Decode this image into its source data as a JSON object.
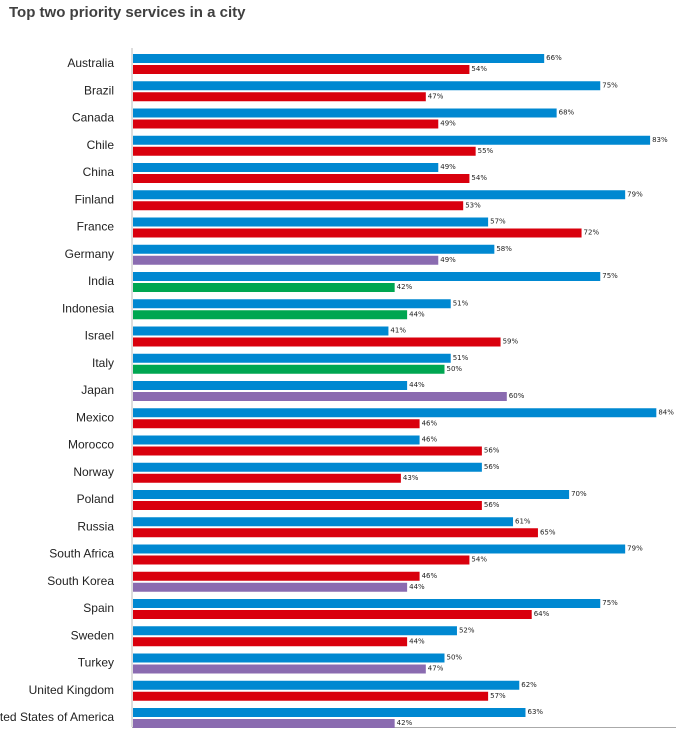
{
  "chart_data": {
    "type": "bar",
    "orientation": "horizontal",
    "title": "Top two priority services in a city",
    "xlim": [
      0,
      87
    ],
    "grid": false,
    "legend": "none",
    "value_suffix": "%",
    "colors": {
      "blue": "#0088d1",
      "red": "#d9000d",
      "purple": "#8a6bb0",
      "green": "#00a651"
    },
    "categories": [
      {
        "label": "Australia",
        "bars": [
          {
            "value": 66,
            "color": "blue"
          },
          {
            "value": 54,
            "color": "red"
          }
        ]
      },
      {
        "label": "Brazil",
        "bars": [
          {
            "value": 75,
            "color": "blue"
          },
          {
            "value": 47,
            "color": "red"
          }
        ]
      },
      {
        "label": "Canada",
        "bars": [
          {
            "value": 68,
            "color": "blue"
          },
          {
            "value": 49,
            "color": "red"
          }
        ]
      },
      {
        "label": "Chile",
        "bars": [
          {
            "value": 83,
            "color": "blue"
          },
          {
            "value": 55,
            "color": "red"
          }
        ]
      },
      {
        "label": "China",
        "bars": [
          {
            "value": 49,
            "color": "blue"
          },
          {
            "value": 54,
            "color": "red"
          }
        ]
      },
      {
        "label": "Finland",
        "bars": [
          {
            "value": 79,
            "color": "blue"
          },
          {
            "value": 53,
            "color": "red"
          }
        ]
      },
      {
        "label": "France",
        "bars": [
          {
            "value": 57,
            "color": "blue"
          },
          {
            "value": 72,
            "color": "red"
          }
        ]
      },
      {
        "label": "Germany",
        "bars": [
          {
            "value": 58,
            "color": "blue"
          },
          {
            "value": 49,
            "color": "purple"
          }
        ]
      },
      {
        "label": "India",
        "bars": [
          {
            "value": 75,
            "color": "blue"
          },
          {
            "value": 42,
            "color": "green"
          }
        ]
      },
      {
        "label": "Indonesia",
        "bars": [
          {
            "value": 51,
            "color": "blue"
          },
          {
            "value": 44,
            "color": "green"
          }
        ]
      },
      {
        "label": "Israel",
        "bars": [
          {
            "value": 41,
            "color": "blue"
          },
          {
            "value": 59,
            "color": "red"
          }
        ]
      },
      {
        "label": "Italy",
        "bars": [
          {
            "value": 51,
            "color": "blue"
          },
          {
            "value": 50,
            "color": "green"
          }
        ]
      },
      {
        "label": "Japan",
        "bars": [
          {
            "value": 44,
            "color": "blue"
          },
          {
            "value": 60,
            "color": "purple"
          }
        ]
      },
      {
        "label": "Mexico",
        "bars": [
          {
            "value": 84,
            "color": "blue"
          },
          {
            "value": 46,
            "color": "red"
          }
        ]
      },
      {
        "label": "Morocco",
        "bars": [
          {
            "value": 46,
            "color": "blue"
          },
          {
            "value": 56,
            "color": "red"
          }
        ]
      },
      {
        "label": "Norway",
        "bars": [
          {
            "value": 56,
            "color": "blue"
          },
          {
            "value": 43,
            "color": "red"
          }
        ]
      },
      {
        "label": "Poland",
        "bars": [
          {
            "value": 70,
            "color": "blue"
          },
          {
            "value": 56,
            "color": "red"
          }
        ]
      },
      {
        "label": "Russia",
        "bars": [
          {
            "value": 61,
            "color": "blue"
          },
          {
            "value": 65,
            "color": "red"
          }
        ]
      },
      {
        "label": "South Africa",
        "bars": [
          {
            "value": 79,
            "color": "blue"
          },
          {
            "value": 54,
            "color": "red"
          }
        ]
      },
      {
        "label": "South Korea",
        "bars": [
          {
            "value": 46,
            "color": "red"
          },
          {
            "value": 44,
            "color": "purple"
          }
        ]
      },
      {
        "label": "Spain",
        "bars": [
          {
            "value": 75,
            "color": "blue"
          },
          {
            "value": 64,
            "color": "red"
          }
        ]
      },
      {
        "label": "Sweden",
        "bars": [
          {
            "value": 52,
            "color": "blue"
          },
          {
            "value": 44,
            "color": "red"
          }
        ]
      },
      {
        "label": "Turkey",
        "bars": [
          {
            "value": 50,
            "color": "blue"
          },
          {
            "value": 47,
            "color": "purple"
          }
        ]
      },
      {
        "label": "United Kingdom",
        "bars": [
          {
            "value": 62,
            "color": "blue"
          },
          {
            "value": 57,
            "color": "red"
          }
        ]
      },
      {
        "label": "United States of America",
        "bars": [
          {
            "value": 63,
            "color": "blue"
          },
          {
            "value": 42,
            "color": "purple"
          }
        ]
      }
    ]
  }
}
